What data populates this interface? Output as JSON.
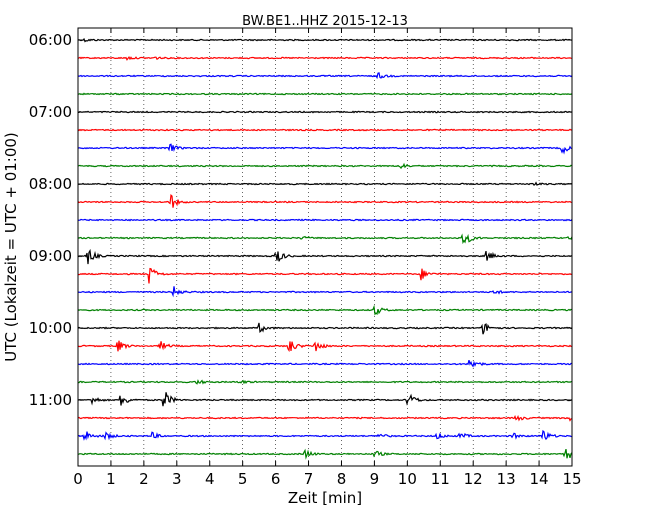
{
  "chart_data": {
    "type": "line",
    "title": "BW.BE1..HHZ 2015-12-13",
    "xlabel": "Zeit  [min]",
    "ylabel": "UTC (Lokalzeit = UTC + 01:00)",
    "xlim": [
      0,
      15
    ],
    "x_ticks": [
      "0",
      "1",
      "2",
      "3",
      "4",
      "5",
      "6",
      "7",
      "8",
      "9",
      "10",
      "11",
      "12",
      "13",
      "14",
      "15"
    ],
    "y_ticks": [
      "06:00",
      "07:00",
      "08:00",
      "09:00",
      "10:00",
      "11:00"
    ],
    "grid": "dotted vertical at each minute",
    "line_colors": [
      "#000000",
      "#ff0000",
      "#0000ff",
      "#008000"
    ],
    "trace_interval_min": 15,
    "traces": [
      {
        "start": "06:00",
        "events": [
          {
            "t": 0.2,
            "a": 0.15
          }
        ]
      },
      {
        "start": "06:15",
        "events": [
          {
            "t": 1.45,
            "a": 0.2
          },
          {
            "t": 2.3,
            "a": 0.15
          }
        ]
      },
      {
        "start": "06:30",
        "events": [
          {
            "t": 9.1,
            "a": 0.35
          }
        ]
      },
      {
        "start": "06:45",
        "events": []
      },
      {
        "start": "07:00",
        "events": []
      },
      {
        "start": "07:15",
        "events": []
      },
      {
        "start": "07:30",
        "events": [
          {
            "t": 2.75,
            "a": 0.6
          },
          {
            "t": 14.7,
            "a": 0.6
          }
        ]
      },
      {
        "start": "07:45",
        "events": [
          {
            "t": 9.8,
            "a": 0.3
          }
        ]
      },
      {
        "start": "08:00",
        "events": [
          {
            "t": 13.8,
            "a": 0.15
          }
        ]
      },
      {
        "start": "08:15",
        "events": [
          {
            "t": 2.8,
            "a": 0.9
          }
        ]
      },
      {
        "start": "08:30",
        "events": []
      },
      {
        "start": "08:45",
        "events": [
          {
            "t": 6.8,
            "a": 0.15
          },
          {
            "t": 11.7,
            "a": 1.0
          },
          {
            "t": 14.9,
            "a": 0.2
          }
        ]
      },
      {
        "start": "09:00",
        "events": [
          {
            "t": 0.3,
            "a": 0.9
          },
          {
            "t": 6.0,
            "a": 1.0
          },
          {
            "t": 12.4,
            "a": 0.6
          }
        ]
      },
      {
        "start": "09:15",
        "events": [
          {
            "t": 2.15,
            "a": 1.1
          },
          {
            "t": 10.4,
            "a": 0.7
          }
        ]
      },
      {
        "start": "09:30",
        "events": [
          {
            "t": 2.9,
            "a": 0.6
          },
          {
            "t": 12.6,
            "a": 0.3
          }
        ]
      },
      {
        "start": "09:45",
        "events": [
          {
            "t": 9.0,
            "a": 0.6
          }
        ]
      },
      {
        "start": "10:00",
        "events": [
          {
            "t": 5.5,
            "a": 0.5
          },
          {
            "t": 12.3,
            "a": 0.7
          }
        ]
      },
      {
        "start": "10:15",
        "events": [
          {
            "t": 1.2,
            "a": 0.7
          },
          {
            "t": 2.5,
            "a": 0.5
          },
          {
            "t": 6.4,
            "a": 0.9
          },
          {
            "t": 7.2,
            "a": 0.7
          }
        ]
      },
      {
        "start": "10:30",
        "events": [
          {
            "t": 11.9,
            "a": 0.8
          }
        ]
      },
      {
        "start": "10:45",
        "events": [
          {
            "t": 3.6,
            "a": 0.3
          },
          {
            "t": 4.9,
            "a": 0.2
          }
        ]
      },
      {
        "start": "11:00",
        "events": [
          {
            "t": 0.4,
            "a": 0.5
          },
          {
            "t": 1.3,
            "a": 0.8
          },
          {
            "t": 2.6,
            "a": 1.2
          },
          {
            "t": 10.0,
            "a": 1.0
          }
        ]
      },
      {
        "start": "11:15",
        "events": [
          {
            "t": 13.3,
            "a": 0.4
          },
          {
            "t": 14.9,
            "a": 0.3
          }
        ]
      },
      {
        "start": "11:30",
        "events": [
          {
            "t": 0.2,
            "a": 0.7
          },
          {
            "t": 0.8,
            "a": 0.5
          },
          {
            "t": 2.2,
            "a": 0.5
          },
          {
            "t": 9.1,
            "a": 0.4
          },
          {
            "t": 10.9,
            "a": 0.4
          },
          {
            "t": 11.6,
            "a": 0.4
          },
          {
            "t": 13.2,
            "a": 0.3
          },
          {
            "t": 14.1,
            "a": 0.8
          }
        ]
      },
      {
        "start": "11:45",
        "events": [
          {
            "t": 6.9,
            "a": 0.5
          },
          {
            "t": 9.0,
            "a": 0.4
          },
          {
            "t": 14.8,
            "a": 0.9
          }
        ]
      }
    ]
  }
}
